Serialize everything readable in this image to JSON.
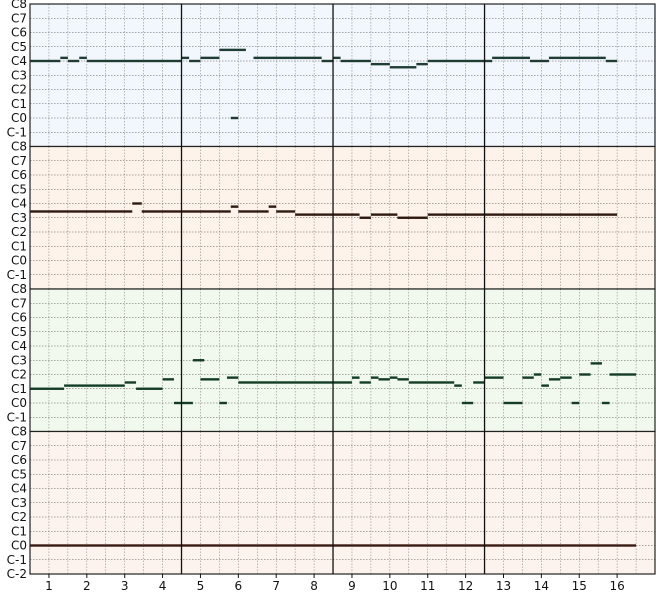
{
  "piano_roll": {
    "measures": [
      "1",
      "2",
      "3",
      "4",
      "5",
      "6",
      "7",
      "8",
      "9",
      "10",
      "11",
      "12",
      "13",
      "14",
      "15",
      "16"
    ],
    "pitch_labels": [
      "C8",
      "C7",
      "C6",
      "C5",
      "C4",
      "C3",
      "C2",
      "C1",
      "C0",
      "C-1",
      "C-2"
    ],
    "tracks": [
      {
        "color": "#f2f6fd",
        "note_color": "#1f3d33",
        "notes": [
          {
            "pitch": "C4",
            "start": 1.0,
            "end": 1.8
          },
          {
            "pitch": "C4+",
            "start": 1.8,
            "end": 2.0
          },
          {
            "pitch": "C4",
            "start": 2.0,
            "end": 2.3
          },
          {
            "pitch": "C4+",
            "start": 2.3,
            "end": 2.5
          },
          {
            "pitch": "C4",
            "start": 2.5,
            "end": 5.0
          },
          {
            "pitch": "C4+",
            "start": 5.0,
            "end": 5.2
          },
          {
            "pitch": "C4",
            "start": 5.2,
            "end": 5.5
          },
          {
            "pitch": "C4+",
            "start": 5.5,
            "end": 6.0
          },
          {
            "pitch": "C5-",
            "start": 6.0,
            "end": 6.7
          },
          {
            "pitch": "C0",
            "start": 6.3,
            "end": 6.5
          },
          {
            "pitch": "C4+",
            "start": 6.9,
            "end": 8.7
          },
          {
            "pitch": "C4",
            "start": 8.7,
            "end": 9.0
          },
          {
            "pitch": "C4+",
            "start": 9.0,
            "end": 9.2
          },
          {
            "pitch": "C4",
            "start": 9.2,
            "end": 10.0
          },
          {
            "pitch": "C4-",
            "start": 10.0,
            "end": 10.5
          },
          {
            "pitch": "C4--",
            "start": 10.5,
            "end": 11.2
          },
          {
            "pitch": "C4-",
            "start": 11.2,
            "end": 11.5
          },
          {
            "pitch": "C4",
            "start": 11.5,
            "end": 13.2
          },
          {
            "pitch": "C4+",
            "start": 13.2,
            "end": 14.2
          },
          {
            "pitch": "C4",
            "start": 14.2,
            "end": 14.7
          },
          {
            "pitch": "C4+",
            "start": 14.7,
            "end": 16.2
          },
          {
            "pitch": "C4",
            "start": 16.2,
            "end": 16.5
          }
        ]
      },
      {
        "color": "#fdf3ea",
        "note_color": "#2e1a10",
        "notes": [
          {
            "pitch": "C3++",
            "start": 1.0,
            "end": 3.7
          },
          {
            "pitch": "C4",
            "start": 3.7,
            "end": 3.95
          },
          {
            "pitch": "C3++",
            "start": 3.95,
            "end": 6.3
          },
          {
            "pitch": "C4-",
            "start": 6.3,
            "end": 6.5
          },
          {
            "pitch": "C3++",
            "start": 6.5,
            "end": 7.3
          },
          {
            "pitch": "C4-",
            "start": 7.3,
            "end": 7.5
          },
          {
            "pitch": "C3++",
            "start": 7.5,
            "end": 8.0
          },
          {
            "pitch": "C3+",
            "start": 8.0,
            "end": 9.7
          },
          {
            "pitch": "C3",
            "start": 9.7,
            "end": 10.0
          },
          {
            "pitch": "C3+",
            "start": 10.0,
            "end": 10.7
          },
          {
            "pitch": "C3",
            "start": 10.7,
            "end": 11.5
          },
          {
            "pitch": "C3+",
            "start": 11.5,
            "end": 16.5
          }
        ]
      },
      {
        "color": "#f1f9ee",
        "note_color": "#143d25",
        "notes": [
          {
            "pitch": "C1",
            "start": 1.0,
            "end": 1.9
          },
          {
            "pitch": "C1+",
            "start": 1.9,
            "end": 3.5
          },
          {
            "pitch": "C1++",
            "start": 3.5,
            "end": 3.8
          },
          {
            "pitch": "C1",
            "start": 3.8,
            "end": 4.5
          },
          {
            "pitch": "C1+++",
            "start": 4.5,
            "end": 4.8
          },
          {
            "pitch": "C0",
            "start": 4.8,
            "end": 5.3
          },
          {
            "pitch": "C3",
            "start": 5.3,
            "end": 5.6
          },
          {
            "pitch": "C1+++",
            "start": 5.5,
            "end": 6.0
          },
          {
            "pitch": "C0",
            "start": 6.0,
            "end": 6.2
          },
          {
            "pitch": "C2-",
            "start": 6.2,
            "end": 6.5
          },
          {
            "pitch": "C1++",
            "start": 6.5,
            "end": 9.5
          },
          {
            "pitch": "C2-",
            "start": 9.5,
            "end": 9.7
          },
          {
            "pitch": "C1++",
            "start": 9.7,
            "end": 10.0
          },
          {
            "pitch": "C2-",
            "start": 10.0,
            "end": 10.2
          },
          {
            "pitch": "C1+++",
            "start": 10.2,
            "end": 10.5
          },
          {
            "pitch": "C2-",
            "start": 10.5,
            "end": 10.7
          },
          {
            "pitch": "C1+++",
            "start": 10.7,
            "end": 11.0
          },
          {
            "pitch": "C1++",
            "start": 11.0,
            "end": 12.2
          },
          {
            "pitch": "C1+",
            "start": 12.2,
            "end": 12.4
          },
          {
            "pitch": "C0",
            "start": 12.4,
            "end": 12.7
          },
          {
            "pitch": "C1++",
            "start": 12.7,
            "end": 13.0
          },
          {
            "pitch": "C2-",
            "start": 13.0,
            "end": 13.5
          },
          {
            "pitch": "C0",
            "start": 13.5,
            "end": 14.0
          },
          {
            "pitch": "C2-",
            "start": 14.0,
            "end": 14.3
          },
          {
            "pitch": "C2",
            "start": 14.3,
            "end": 14.5
          },
          {
            "pitch": "C1+",
            "start": 14.5,
            "end": 14.7
          },
          {
            "pitch": "C1+++",
            "start": 14.7,
            "end": 15.0
          },
          {
            "pitch": "C2-",
            "start": 15.0,
            "end": 15.3
          },
          {
            "pitch": "C0",
            "start": 15.3,
            "end": 15.5
          },
          {
            "pitch": "C2",
            "start": 15.5,
            "end": 15.8
          },
          {
            "pitch": "C3-",
            "start": 15.8,
            "end": 16.1
          },
          {
            "pitch": "C0",
            "start": 16.1,
            "end": 16.3
          },
          {
            "pitch": "C2",
            "start": 16.3,
            "end": 17.0
          }
        ]
      },
      {
        "color": "#fdf3ee",
        "note_color": "#3a1a12",
        "notes": [
          {
            "pitch": "C0",
            "start": 1.0,
            "end": 17.0
          }
        ]
      }
    ]
  }
}
